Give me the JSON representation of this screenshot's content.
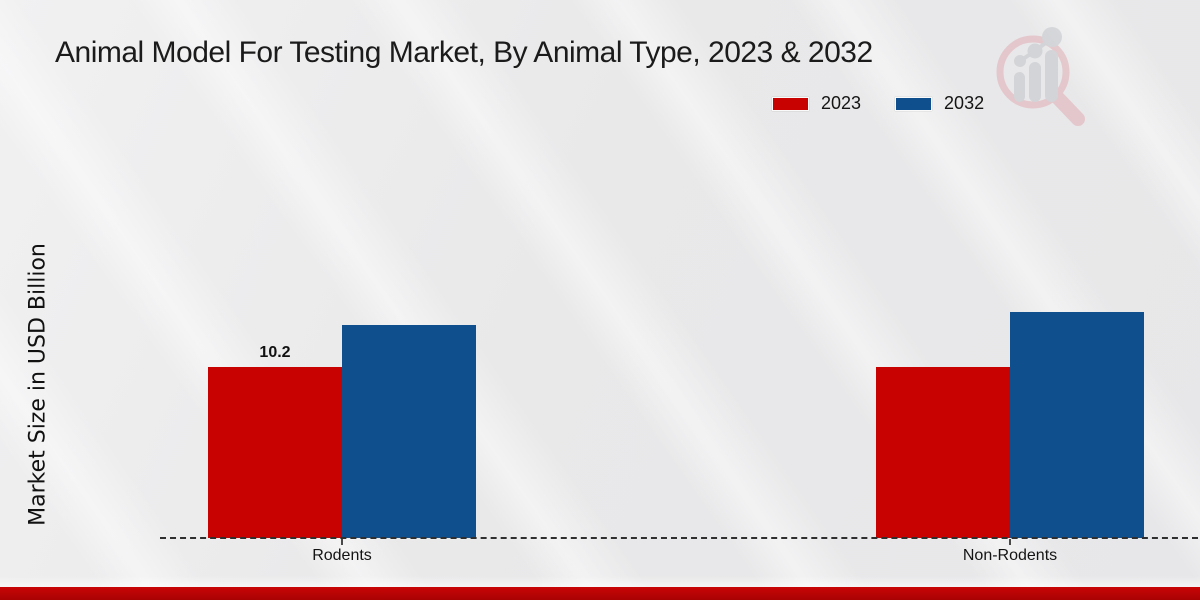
{
  "chart_data": {
    "type": "bar",
    "title": "Animal Model For Testing Market, By Animal Type, 2023 & 2032",
    "ylabel": "Market Size in USD Billion",
    "categories": [
      "Rodents",
      "Non-Rodents"
    ],
    "series": [
      {
        "name": "2023",
        "color": "#c80201",
        "values": [
          10.2,
          10.2
        ]
      },
      {
        "name": "2032",
        "color": "#104f8d",
        "values": [
          12.7,
          13.5
        ]
      }
    ],
    "data_labels": [
      {
        "series_index": 0,
        "category_index": 0,
        "text": "10.2"
      }
    ],
    "ylim": [
      0,
      14
    ],
    "grid": false,
    "legend_position": "top-right",
    "baseline_style": "dashed"
  },
  "footer": {
    "band_color": "#b80304"
  },
  "watermark": {
    "icon": "magnifier-bar-chart-logo"
  }
}
